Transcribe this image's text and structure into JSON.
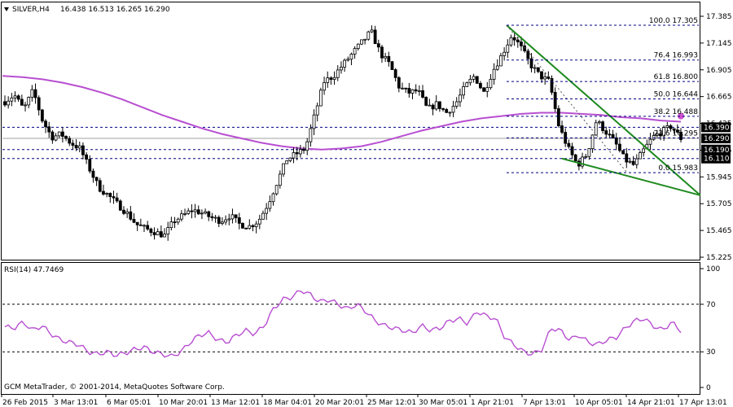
{
  "header": {
    "symbol": "SILVER,H4",
    "ohlc": "16.438 16.513 16.265 16.290",
    "icon": "triangle-down-icon"
  },
  "footer_text": "GCM MetaTrader, © 2001-2014, MetaQuotes Software Corp.",
  "colors": {
    "ma": "#b84fd1",
    "wedge": "#1e8a1e",
    "rsi": "#b84fd1",
    "candle": "#000000",
    "grid": "#000080",
    "marker": "#d050d0"
  },
  "chart_data": [
    {
      "type": "candlestick",
      "title": "SILVER,H4",
      "ylim": [
        15.225,
        17.445
      ],
      "y_ticks": [
        "17.385",
        "17.145",
        "16.905",
        "16.665",
        "16.425",
        "16.185",
        "15.945",
        "15.705",
        "15.465",
        "15.225"
      ],
      "x_ticks": [
        "26 Feb 2015",
        "3 Mar 13:01",
        "6 Mar 05:01",
        "10 Mar 20:01",
        "13 Mar 12:01",
        "18 Mar 04:01",
        "20 Mar 20:01",
        "25 Mar 12:01",
        "30 Mar 05:01",
        "1 Apr 21:01",
        "7 Apr 13:01",
        "10 Apr 05:01",
        "14 Apr 21:01",
        "17 Apr 13:01"
      ],
      "close_path": [
        16.62,
        16.68,
        16.55,
        16.72,
        16.45,
        16.3,
        16.33,
        16.25,
        16.2,
        16.02,
        15.85,
        15.78,
        15.7,
        15.62,
        15.52,
        15.48,
        15.45,
        15.42,
        15.55,
        15.6,
        15.65,
        15.62,
        15.58,
        15.55,
        15.6,
        15.52,
        15.5,
        15.55,
        15.7,
        15.9,
        16.1,
        16.15,
        16.2,
        16.5,
        16.8,
        16.85,
        16.95,
        17.05,
        17.15,
        17.25,
        17.05,
        16.95,
        16.75,
        16.7,
        16.72,
        16.55,
        16.6,
        16.52,
        16.6,
        16.75,
        16.85,
        16.7,
        16.9,
        17.05,
        17.22,
        17.1,
        16.95,
        16.85,
        16.8,
        16.4,
        16.2,
        16.05,
        16.15,
        16.45,
        16.35,
        16.25,
        16.1,
        16.05,
        16.18,
        16.3,
        16.35,
        16.4,
        16.29
      ],
      "fib_levels": [
        {
          "label": "100.0 17.305",
          "value": 17.305
        },
        {
          "label": "76.4 16.993",
          "value": 16.993
        },
        {
          "label": "61.8 16.800",
          "value": 16.8
        },
        {
          "label": "50.0 16.644",
          "value": 16.644
        },
        {
          "label": "38.2 16.488",
          "value": 16.488
        },
        {
          "label": "23.6 16.295",
          "value": 16.295
        },
        {
          "label": "0.0 15.983",
          "value": 15.983
        }
      ],
      "price_tags": [
        {
          "text": "16.390",
          "value": 16.39
        },
        {
          "text": "16.290",
          "value": 16.29
        },
        {
          "text": "16.190",
          "value": 16.19
        },
        {
          "text": "16.110",
          "value": 16.11
        }
      ],
      "ma_path": [
        16.85,
        16.84,
        16.82,
        16.79,
        16.75,
        16.7,
        16.64,
        16.57,
        16.5,
        16.44,
        16.38,
        16.33,
        16.29,
        16.25,
        16.22,
        16.2,
        16.19,
        16.2,
        16.22,
        16.26,
        16.31,
        16.36,
        16.4,
        16.44,
        16.47,
        16.49,
        16.51,
        16.52,
        16.52,
        16.51,
        16.5,
        16.48,
        16.47,
        16.45,
        16.44
      ],
      "wedge_upper": [
        [
          17.305,
          0.0
        ],
        [
          15.78,
          1.0
        ]
      ],
      "wedge_lower": [
        [
          16.07,
          0.0
        ],
        [
          15.78,
          1.0
        ]
      ]
    },
    {
      "type": "line",
      "title": "RSI(14) 47.7469",
      "ylim": [
        0,
        100
      ],
      "y_ticks": [
        "100",
        "70",
        "30",
        "0"
      ],
      "levels": [
        70,
        30
      ],
      "series": [
        {
          "name": "RSI(14)",
          "values": [
            51,
            50,
            55,
            48,
            52,
            45,
            40,
            38,
            36,
            30,
            28,
            30,
            27,
            29,
            32,
            34,
            30,
            28,
            26,
            30,
            38,
            44,
            46,
            40,
            38,
            44,
            48,
            45,
            52,
            66,
            74,
            76,
            82,
            78,
            72,
            74,
            70,
            66,
            70,
            64,
            56,
            52,
            50,
            48,
            46,
            52,
            48,
            50,
            56,
            58,
            54,
            64,
            60,
            58,
            42,
            36,
            30,
            28,
            32,
            50,
            48,
            40,
            44,
            38,
            36,
            40,
            42,
            50,
            56,
            58,
            52,
            48,
            55,
            47.75
          ]
        }
      ]
    }
  ]
}
